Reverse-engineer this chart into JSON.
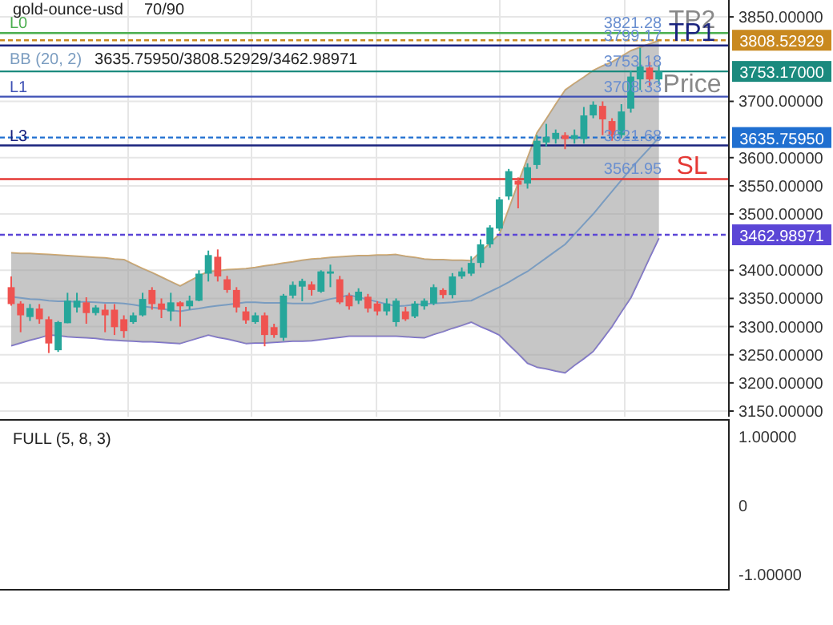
{
  "chart_data": [
    {
      "type": "candlestick",
      "title": "gold-ounce-usd",
      "subtitle": "70/90",
      "categories": [
        null,
        null,
        null,
        null,
        null,
        null,
        null,
        null,
        null,
        null,
        null,
        null,
        null,
        null,
        null,
        null,
        null,
        null,
        null,
        null,
        null,
        null,
        null,
        null,
        null,
        null,
        null,
        null,
        null,
        null,
        null,
        null,
        null,
        null,
        null,
        null,
        null,
        null,
        null,
        null,
        null,
        null,
        null,
        null,
        null,
        null,
        null,
        null,
        null,
        null,
        null,
        null,
        null,
        null,
        null,
        null,
        null,
        null,
        null,
        null,
        null,
        null,
        null,
        null,
        null,
        null,
        null,
        null,
        null,
        null
      ],
      "ohlc": [
        [
          3370,
          3389,
          3337,
          3340
        ],
        [
          3341,
          3345,
          3290,
          3320
        ],
        [
          3317,
          3340,
          3310,
          3333
        ],
        [
          3332,
          3340,
          3305,
          3313
        ],
        [
          3313,
          3318,
          3253,
          3270
        ],
        [
          3258,
          3310,
          3255,
          3308
        ],
        [
          3306,
          3360,
          3306,
          3346
        ],
        [
          3334,
          3360,
          3325,
          3346
        ],
        [
          3343,
          3352,
          3305,
          3324
        ],
        [
          3324,
          3338,
          3320,
          3334
        ],
        [
          3330,
          3340,
          3290,
          3320
        ],
        [
          3330,
          3340,
          3285,
          3299
        ],
        [
          3313,
          3320,
          3280,
          3292
        ],
        [
          3308,
          3325,
          3305,
          3320
        ],
        [
          3320,
          3360,
          3318,
          3349
        ],
        [
          3365,
          3370,
          3330,
          3340
        ],
        [
          3341,
          3350,
          3315,
          3330
        ],
        [
          3327,
          3360,
          3310,
          3343
        ],
        [
          3343,
          3345,
          3300,
          3336
        ],
        [
          3336,
          3355,
          3330,
          3346
        ],
        [
          3346,
          3400,
          3345,
          3394
        ],
        [
          3394,
          3435,
          3380,
          3427
        ],
        [
          3424,
          3437,
          3380,
          3389
        ],
        [
          3384,
          3390,
          3360,
          3365
        ],
        [
          3365,
          3370,
          3325,
          3334
        ],
        [
          3327,
          3335,
          3305,
          3311
        ],
        [
          3308,
          3325,
          3305,
          3320
        ],
        [
          3320,
          3325,
          3265,
          3285
        ],
        [
          3299,
          3305,
          3280,
          3285
        ],
        [
          3280,
          3358,
          3275,
          3355
        ],
        [
          3355,
          3380,
          3350,
          3374
        ],
        [
          3371,
          3385,
          3345,
          3381
        ],
        [
          3375,
          3380,
          3355,
          3365
        ],
        [
          3362,
          3400,
          3360,
          3398
        ],
        [
          3394,
          3410,
          3370,
          3398
        ],
        [
          3384,
          3390,
          3340,
          3343
        ],
        [
          3355,
          3360,
          3330,
          3336
        ],
        [
          3346,
          3368,
          3340,
          3362
        ],
        [
          3353,
          3358,
          3325,
          3332
        ],
        [
          3341,
          3345,
          3320,
          3327
        ],
        [
          3327,
          3350,
          3320,
          3341
        ],
        [
          3308,
          3350,
          3300,
          3346
        ],
        [
          3327,
          3335,
          3310,
          3313
        ],
        [
          3318,
          3345,
          3315,
          3341
        ],
        [
          3336,
          3350,
          3330,
          3346
        ],
        [
          3341,
          3375,
          3338,
          3370
        ],
        [
          3365,
          3368,
          3350,
          3356
        ],
        [
          3356,
          3395,
          3350,
          3389
        ],
        [
          3389,
          3405,
          3385,
          3398
        ],
        [
          3394,
          3425,
          3390,
          3413
        ],
        [
          3413,
          3455,
          3405,
          3446
        ],
        [
          3446,
          3480,
          3440,
          3476
        ],
        [
          3474,
          3530,
          3470,
          3526
        ],
        [
          3531,
          3580,
          3525,
          3576
        ],
        [
          3559,
          3565,
          3510,
          3552
        ],
        [
          3554,
          3590,
          3545,
          3583
        ],
        [
          3587,
          3640,
          3580,
          3630
        ],
        [
          3627,
          3660,
          3620,
          3637
        ],
        [
          3633,
          3650,
          3625,
          3644
        ],
        [
          3640,
          3645,
          3615,
          3633
        ],
        [
          3633,
          3650,
          3625,
          3640
        ],
        [
          3633,
          3690,
          3625,
          3675
        ],
        [
          3675,
          3700,
          3670,
          3694
        ],
        [
          3692,
          3700,
          3640,
          3668
        ],
        [
          3665,
          3670,
          3630,
          3640
        ],
        [
          3640,
          3695,
          3635,
          3682
        ],
        [
          3687,
          3755,
          3680,
          3744
        ],
        [
          3739,
          3795,
          3720,
          3762
        ],
        [
          3760,
          3770,
          3725,
          3739
        ],
        [
          3739,
          3765,
          3730,
          3753.17
        ]
      ],
      "series": [
        {
          "type": "line",
          "color": "#d4a96a",
          "values": [
            3431,
            3430,
            3430,
            3429,
            3428,
            3427,
            3426,
            3425,
            3424,
            3423,
            3422,
            3420,
            3419,
            3411,
            3403,
            3396,
            3388,
            3380,
            3372,
            3381,
            3390,
            3398,
            3399,
            3401,
            3402,
            3403,
            3405,
            3408,
            3410,
            3413,
            3415,
            3418,
            3420,
            3421,
            3423,
            3424,
            3425,
            3426,
            3426,
            3427,
            3427,
            3428,
            3425,
            3423,
            3420,
            3419,
            3419,
            3418,
            3418,
            3417,
            3433,
            3448,
            3464,
            3509,
            3555,
            3600,
            3644,
            3669,
            3695,
            3720,
            3732,
            3743,
            3755,
            3763,
            3770,
            3780,
            3790,
            3796,
            3802,
            3808
          ]
        },
        {
          "type": "line",
          "color": "#7b6fd0",
          "values": [
            3266,
            3271,
            3276,
            3280,
            3285,
            3284,
            3282,
            3281,
            3280,
            3279,
            3277,
            3276,
            3275,
            3274,
            3273,
            3273,
            3272,
            3271,
            3270,
            3275,
            3280,
            3285,
            3281,
            3278,
            3274,
            3270,
            3271,
            3271,
            3272,
            3273,
            3274,
            3274,
            3275,
            3277,
            3279,
            3281,
            3283,
            3283,
            3283,
            3283,
            3283,
            3283,
            3282,
            3281,
            3280,
            3286,
            3291,
            3297,
            3302,
            3308,
            3300,
            3293,
            3285,
            3268,
            3252,
            3235,
            3228,
            3225,
            3221,
            3218,
            3231,
            3243,
            3256,
            3278,
            3300,
            3326,
            3351,
            3386,
            3422,
            3457
          ]
        },
        {
          "name": "BB (20, 2)",
          "type": "line",
          "color": "#7a9cc0",
          "values": [
            3353,
            3351,
            3349,
            3348,
            3346,
            3345,
            3345,
            3344,
            3344,
            3343,
            3342,
            3342,
            3341,
            3339,
            3336,
            3334,
            3332,
            3329,
            3327,
            3330,
            3332,
            3335,
            3337,
            3339,
            3341,
            3343,
            3343,
            3342,
            3342,
            3342,
            3341,
            3341,
            3341,
            3345,
            3349,
            3352,
            3356,
            3352,
            3348,
            3344,
            3340,
            3336,
            3337,
            3339,
            3340,
            3341,
            3342,
            3343,
            3345,
            3346,
            3354,
            3362,
            3370,
            3379,
            3389,
            3398,
            3410,
            3422,
            3434,
            3446,
            3464,
            3482,
            3500,
            3520,
            3540,
            3560,
            3580,
            3599,
            3617,
            3636
          ],
          "upper": [
            3431,
            3430,
            3430,
            3429,
            3428,
            3427,
            3426,
            3425,
            3424,
            3423,
            3422,
            3420,
            3419,
            3411,
            3403,
            3396,
            3388,
            3380,
            3372,
            3381,
            3390,
            3398,
            3399,
            3401,
            3402,
            3403,
            3405,
            3408,
            3410,
            3413,
            3415,
            3418,
            3420,
            3421,
            3423,
            3424,
            3425,
            3426,
            3426,
            3427,
            3427,
            3428,
            3425,
            3423,
            3420,
            3419,
            3419,
            3418,
            3418,
            3417,
            3433,
            3448,
            3464,
            3509,
            3555,
            3600,
            3644,
            3669,
            3695,
            3720,
            3732,
            3743,
            3755,
            3763,
            3770,
            3780,
            3790,
            3796,
            3802,
            3808
          ],
          "lower": [
            3266,
            3271,
            3276,
            3280,
            3285,
            3284,
            3282,
            3281,
            3280,
            3279,
            3277,
            3276,
            3275,
            3274,
            3273,
            3273,
            3272,
            3271,
            3270,
            3275,
            3280,
            3285,
            3281,
            3278,
            3274,
            3270,
            3271,
            3271,
            3272,
            3273,
            3274,
            3274,
            3275,
            3277,
            3279,
            3281,
            3283,
            3283,
            3283,
            3283,
            3283,
            3283,
            3282,
            3281,
            3280,
            3286,
            3291,
            3297,
            3302,
            3308,
            3300,
            3293,
            3285,
            3268,
            3252,
            3235,
            3228,
            3225,
            3221,
            3218,
            3231,
            3243,
            3256,
            3278,
            3300,
            3326,
            3351,
            3386,
            3422,
            3457
          ]
        }
      ],
      "ylim": [
        3140,
        3880
      ],
      "yticks": [
        {
          "value": 3150,
          "label": "3150.00000"
        },
        {
          "value": 3200,
          "label": "3200.00000"
        },
        {
          "value": 3250,
          "label": "3250.00000"
        },
        {
          "value": 3300,
          "label": "3300.00000"
        },
        {
          "value": 3350,
          "label": "3350.00000"
        },
        {
          "value": 3400,
          "label": "3400.00000"
        },
        {
          "value": 3500,
          "label": "3500.00000"
        },
        {
          "value": 3550,
          "label": "3550.00000"
        },
        {
          "value": 3600,
          "label": "3600.00000"
        },
        {
          "value": 3700,
          "label": "3700.00000"
        },
        {
          "value": 3850,
          "label": "3850.00000"
        }
      ],
      "grid": true,
      "tick_labels": "y",
      "ref_lines": [
        {
          "axis": "y",
          "value": 3821.28,
          "label": "L0",
          "color": "#4caf50",
          "line_style": "solid"
        },
        {
          "axis": "y",
          "value": 3808.52929,
          "label": "3808.52929",
          "color": "#c9891f",
          "line_style": "dashed"
        },
        {
          "axis": "y",
          "value": 3799.17,
          "color": "#1a237e",
          "line_style": "solid"
        },
        {
          "axis": "y",
          "value": 3753.17,
          "label": "3753.17000",
          "color": "#1b8a7e",
          "line_style": "solid"
        },
        {
          "axis": "y",
          "value": 3708.33,
          "label": "L1",
          "color": "#3f51b5",
          "line_style": "solid"
        },
        {
          "axis": "y",
          "value": 3635.7595,
          "label": "3635.75950",
          "color": "#1f6fd0",
          "line_style": "dashed"
        },
        {
          "axis": "y",
          "value": 3621.68,
          "label": "L3",
          "color": "#1a237e",
          "line_style": "solid"
        },
        {
          "axis": "y",
          "value": 3561.95,
          "color": "#e53935",
          "line_style": "solid"
        },
        {
          "axis": "y",
          "value": 3462.98971,
          "label": "3462.98971",
          "color": "#5b46d6",
          "line_style": "dashed"
        }
      ],
      "annotations": [
        "3635.75950/3808.52929/3462.98971",
        {
          "text": "3821.28",
          "y": 3821.28
        },
        {
          "text": "3799.17",
          "y": 3799.17
        },
        {
          "text": "3753.18",
          "y": 3753.18
        },
        {
          "text": "3708.33",
          "y": 3708.33
        },
        {
          "text": "3621.68",
          "y": 3621.68
        },
        {
          "text": "3561.95",
          "y": 3561.95
        },
        {
          "text": "TP2",
          "y": 3821.28
        },
        {
          "text": "TP1",
          "y": 3799.17
        },
        {
          "text": "Price",
          "y": 3708.33
        },
        {
          "text": "SL",
          "y": 3561.95
        }
      ]
    },
    {
      "type": "other",
      "title": "FULL (5, 8, 3)",
      "annotations": [
        "1.00000",
        "0",
        "-1.00000"
      ]
    }
  ]
}
